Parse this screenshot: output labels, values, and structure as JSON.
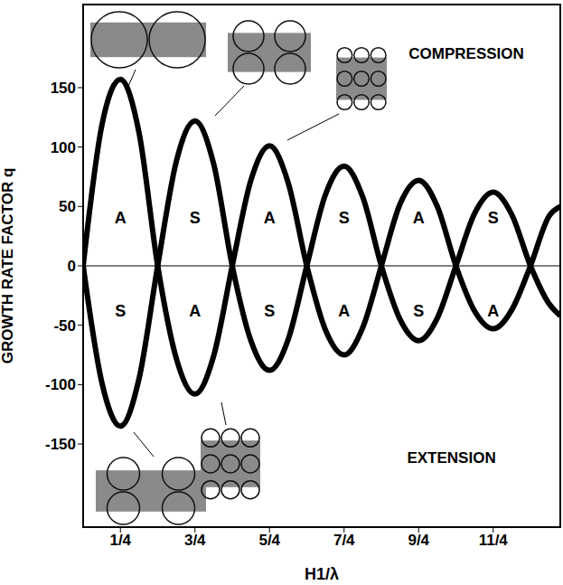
{
  "chart_data": {
    "type": "line",
    "xlabel": "H1/λ",
    "ylabel": "GROWTH RATE FACTOR q",
    "x": [
      0,
      0.125,
      0.25,
      0.375,
      0.5,
      0.625,
      0.75,
      0.875,
      1,
      1.125,
      1.25,
      1.375,
      1.5,
      1.625,
      1.75,
      1.875,
      2,
      2.125,
      2.25,
      2.375,
      2.5,
      2.625,
      2.75,
      2.875,
      3,
      3.125,
      3.2
    ],
    "series": [
      {
        "color": "#000000",
        "values": [
          0,
          118,
          157,
          112,
          0,
          -78,
          -108,
          -76,
          0,
          72,
          101,
          70,
          0,
          -54,
          -75,
          -52,
          0,
          52,
          72,
          50,
          0,
          -38,
          -53,
          -37,
          0,
          42,
          50
        ]
      },
      {
        "color": "#000000",
        "values": [
          0,
          -98,
          -135,
          -95,
          0,
          88,
          122,
          86,
          0,
          -63,
          -88,
          -62,
          0,
          60,
          84,
          58,
          0,
          -45,
          -63,
          -44,
          0,
          44,
          62,
          43,
          0,
          -32,
          -42
        ]
      }
    ],
    "xlim": [
      0,
      3.2
    ],
    "ylim": [
      -220,
      220
    ],
    "xticks": [
      {
        "value": 0.25,
        "label": "1/4"
      },
      {
        "value": 0.75,
        "label": "3/4"
      },
      {
        "value": 1.25,
        "label": "5/4"
      },
      {
        "value": 1.75,
        "label": "7/4"
      },
      {
        "value": 2.25,
        "label": "9/4"
      },
      {
        "value": 2.75,
        "label": "11/4"
      }
    ],
    "yticks": [
      -150,
      -100,
      -50,
      0,
      50,
      100,
      150
    ],
    "grid": false,
    "annotations": [
      {
        "x": 0.25,
        "y": 41,
        "text": "A"
      },
      {
        "x": 0.75,
        "y": 41,
        "text": "S"
      },
      {
        "x": 1.25,
        "y": 41,
        "text": "A"
      },
      {
        "x": 1.75,
        "y": 41,
        "text": "S"
      },
      {
        "x": 2.25,
        "y": 41,
        "text": "A"
      },
      {
        "x": 2.75,
        "y": 41,
        "text": "S"
      },
      {
        "x": 0.25,
        "y": -38,
        "text": "S"
      },
      {
        "x": 0.75,
        "y": -38,
        "text": "A"
      },
      {
        "x": 1.25,
        "y": -38,
        "text": "S"
      },
      {
        "x": 1.75,
        "y": -38,
        "text": "A"
      },
      {
        "x": 2.25,
        "y": -38,
        "text": "S"
      },
      {
        "x": 2.75,
        "y": -38,
        "text": "A"
      },
      {
        "x": 2.57,
        "y": 179,
        "text": "COMPRESSION"
      },
      {
        "x": 2.47,
        "y": -161,
        "text": "EXTENSION"
      }
    ]
  }
}
